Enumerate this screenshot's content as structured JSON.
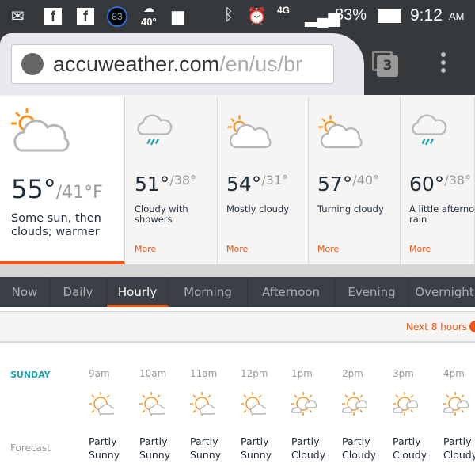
{
  "status_bar": {
    "notif_badge": "83",
    "weather_temp": "40°",
    "network": "4G",
    "battery": "83%",
    "time": "9:12",
    "ampm": "AM"
  },
  "browser": {
    "url_host": "accuweather.com",
    "url_path": "/en/us/br",
    "tab_count": "3"
  },
  "colors": {
    "accent": "#f05514",
    "teal": "#1ba3b6",
    "sun": "#f7941d",
    "cloud": "#b5b7b9",
    "rain": "#1ba3b6"
  },
  "daily_cards": [
    {
      "icon": "sun-cloud",
      "hi": "55°",
      "lo": "/41°F",
      "desc": "Some sun, then clouds; warmer",
      "more": ""
    },
    {
      "icon": "cloud-rain",
      "hi": "51°",
      "lo": "/38°",
      "desc": "Cloudy with\nshowers",
      "more": "More"
    },
    {
      "icon": "sun-cloud",
      "hi": "54°",
      "lo": "/31°",
      "desc": "Mostly cloudy",
      "more": "More"
    },
    {
      "icon": "sun-cloud",
      "hi": "57°",
      "lo": "/40°",
      "desc": "Turning cloudy",
      "more": "More"
    },
    {
      "icon": "cloud-rain",
      "hi": "60°",
      "lo": "/38°",
      "desc": "A little afternoon\nrain",
      "more": "More"
    }
  ],
  "nav_tabs": [
    {
      "label": "Now"
    },
    {
      "label": "Daily"
    },
    {
      "label": "Hourly",
      "active": true
    },
    {
      "label": "Morning"
    },
    {
      "label": "Afternoon"
    },
    {
      "label": "Evening"
    },
    {
      "label": "Overnight"
    }
  ],
  "next_hours": "Next 8 hours",
  "hourly": {
    "day": "SUNDAY",
    "row_label": "Forecast",
    "hours": [
      {
        "time": "9am",
        "icon": "partly-sunny",
        "cond1": "Partly",
        "cond2": "Sunny"
      },
      {
        "time": "10am",
        "icon": "partly-sunny",
        "cond1": "Partly",
        "cond2": "Sunny"
      },
      {
        "time": "11am",
        "icon": "partly-sunny",
        "cond1": "Partly",
        "cond2": "Sunny"
      },
      {
        "time": "12pm",
        "icon": "partly-sunny",
        "cond1": "Partly",
        "cond2": "Sunny"
      },
      {
        "time": "1pm",
        "icon": "partly-cloudy",
        "cond1": "Partly",
        "cond2": "Cloudy"
      },
      {
        "time": "2pm",
        "icon": "partly-cloudy",
        "cond1": "Partly",
        "cond2": "Cloudy"
      },
      {
        "time": "3pm",
        "icon": "partly-cloudy",
        "cond1": "Partly",
        "cond2": "Cloudy"
      },
      {
        "time": "4pm",
        "icon": "partly-cloudy",
        "cond1": "Partly",
        "cond2": "Cloudy"
      }
    ]
  }
}
